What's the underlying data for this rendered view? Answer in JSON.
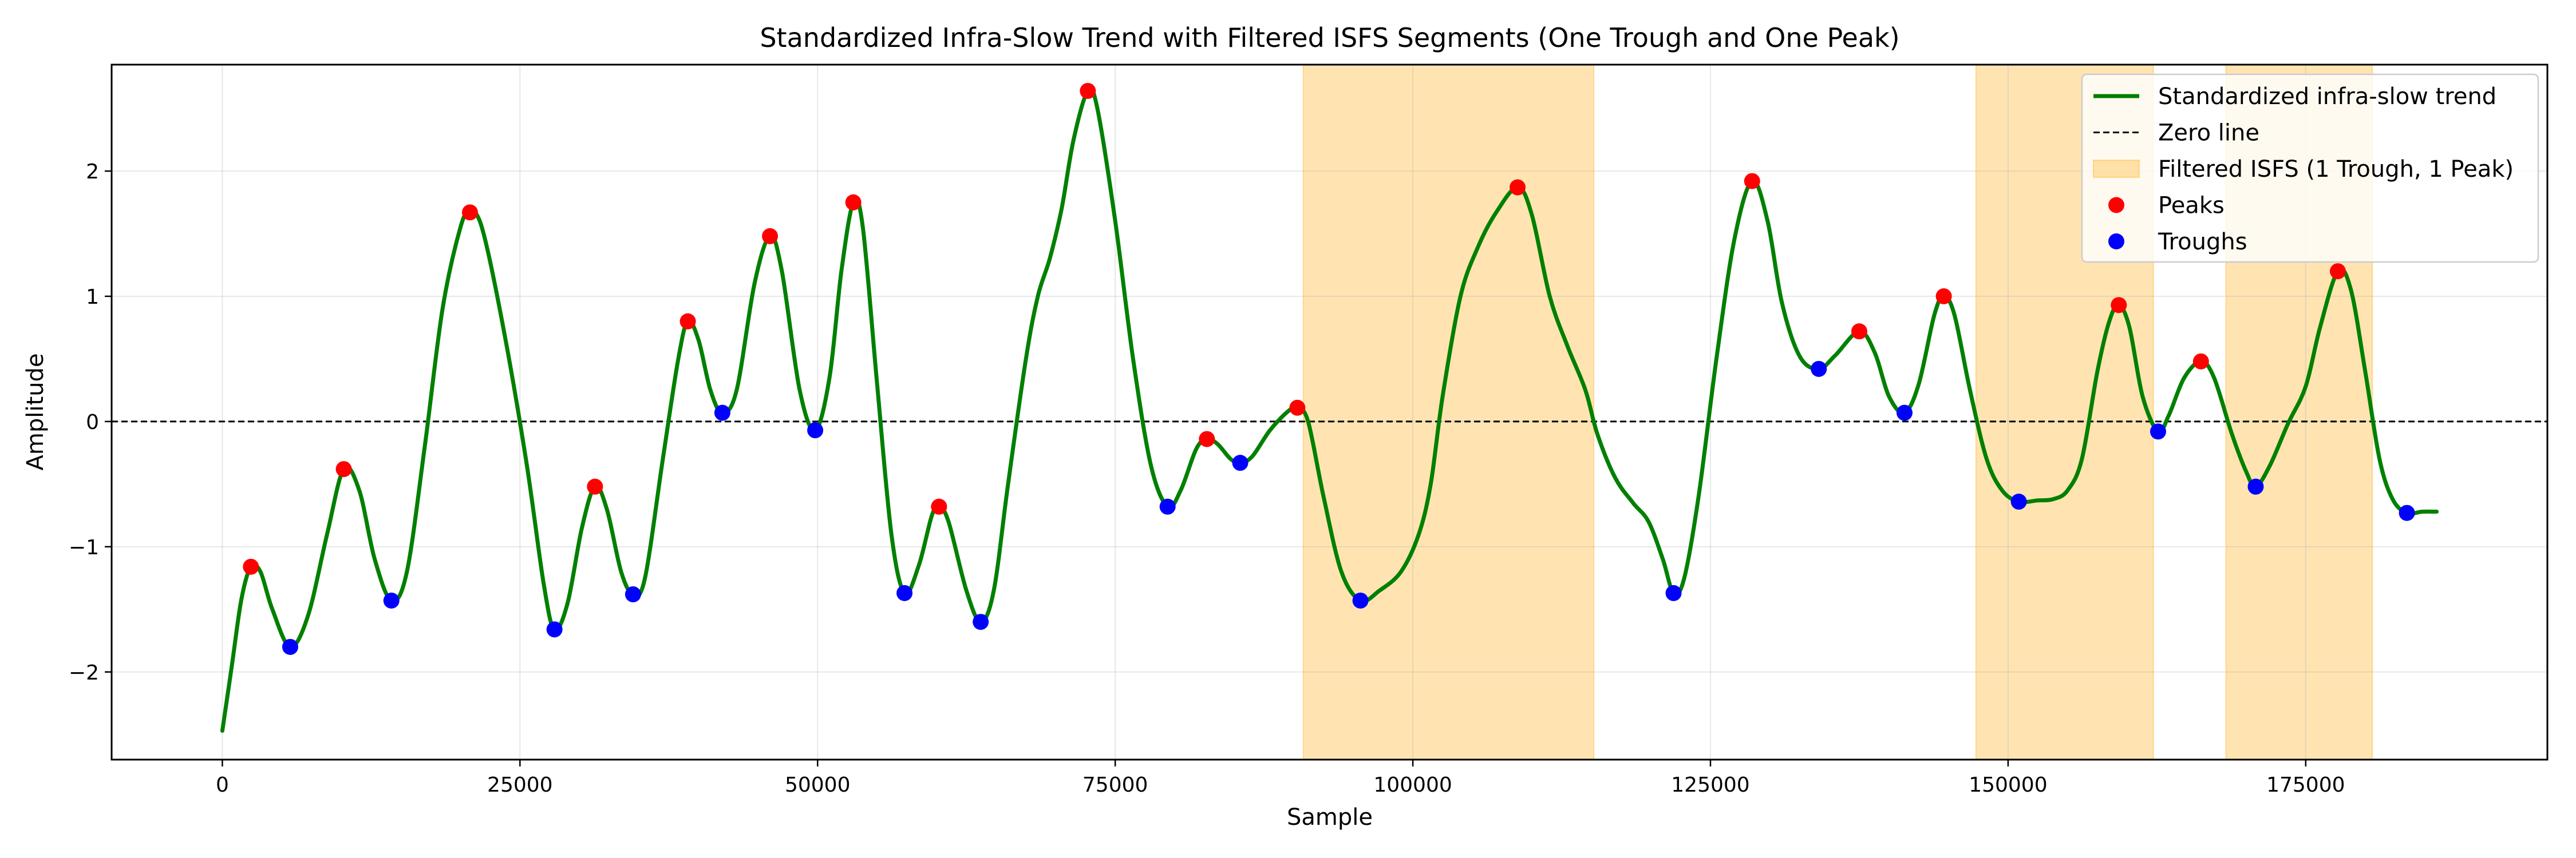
{
  "chart_data": {
    "type": "line",
    "title": "Standardized Infra-Slow Trend with Filtered ISFS Segments (One Trough and One Peak)",
    "xlabel": "Sample",
    "ylabel": "Amplitude",
    "xlim": [
      -9300,
      195300
    ],
    "ylim": [
      -2.7,
      2.85
    ],
    "xticks": [
      0,
      25000,
      50000,
      75000,
      100000,
      125000,
      150000,
      175000
    ],
    "xtick_labels": [
      "0",
      "25000",
      "50000",
      "75000",
      "100000",
      "125000",
      "150000",
      "175000"
    ],
    "yticks": [
      -2,
      -1,
      0,
      1,
      2
    ],
    "ytick_labels": [
      "−2",
      "−1",
      "0",
      "1",
      "2"
    ],
    "grid": true,
    "legend_position": "top-right",
    "colors": {
      "trend": "#008000",
      "zero": "#000000",
      "isfs": "#ffa500",
      "peaks": "#ff0000",
      "troughs": "#0000ff"
    },
    "series": [
      {
        "name": "Standardized infra-slow trend",
        "type": "line",
        "points": [
          [
            0,
            -2.47
          ],
          [
            800,
            -1.95
          ],
          [
            1600,
            -1.42
          ],
          [
            2400,
            -1.16
          ],
          [
            3200,
            -1.2
          ],
          [
            4200,
            -1.5
          ],
          [
            5700,
            -1.8
          ],
          [
            7200,
            -1.55
          ],
          [
            8800,
            -0.9
          ],
          [
            10200,
            -0.38
          ],
          [
            11500,
            -0.55
          ],
          [
            12800,
            -1.1
          ],
          [
            14200,
            -1.43
          ],
          [
            15500,
            -1.2
          ],
          [
            17000,
            -0.2
          ],
          [
            18500,
            0.9
          ],
          [
            20000,
            1.55
          ],
          [
            20800,
            1.67
          ],
          [
            21800,
            1.55
          ],
          [
            23500,
            0.8
          ],
          [
            25500,
            -0.3
          ],
          [
            27000,
            -1.3
          ],
          [
            27900,
            -1.66
          ],
          [
            29000,
            -1.45
          ],
          [
            30200,
            -0.85
          ],
          [
            31300,
            -0.52
          ],
          [
            32300,
            -0.7
          ],
          [
            33500,
            -1.2
          ],
          [
            34500,
            -1.38
          ],
          [
            35500,
            -1.25
          ],
          [
            37000,
            -0.3
          ],
          [
            38300,
            0.5
          ],
          [
            39100,
            0.8
          ],
          [
            40000,
            0.65
          ],
          [
            41000,
            0.25
          ],
          [
            42000,
            0.07
          ],
          [
            43200,
            0.25
          ],
          [
            44700,
            1.1
          ],
          [
            46000,
            1.48
          ],
          [
            47000,
            1.2
          ],
          [
            48500,
            0.25
          ],
          [
            49800,
            -0.07
          ],
          [
            51000,
            0.35
          ],
          [
            52000,
            1.2
          ],
          [
            53000,
            1.75
          ],
          [
            53800,
            1.55
          ],
          [
            55000,
            0.3
          ],
          [
            56200,
            -0.9
          ],
          [
            57300,
            -1.37
          ],
          [
            58500,
            -1.15
          ],
          [
            59600,
            -0.75
          ],
          [
            60200,
            -0.68
          ],
          [
            61000,
            -0.8
          ],
          [
            62500,
            -1.35
          ],
          [
            63700,
            -1.6
          ],
          [
            64800,
            -1.35
          ],
          [
            66000,
            -0.5
          ],
          [
            67500,
            0.5
          ],
          [
            68500,
            1.0
          ],
          [
            69500,
            1.3
          ],
          [
            70500,
            1.7
          ],
          [
            71500,
            2.25
          ],
          [
            72700,
            2.64
          ],
          [
            73500,
            2.5
          ],
          [
            75000,
            1.6
          ],
          [
            76500,
            0.5
          ],
          [
            78000,
            -0.35
          ],
          [
            79400,
            -0.68
          ],
          [
            80500,
            -0.55
          ],
          [
            81800,
            -0.22
          ],
          [
            82700,
            -0.14
          ],
          [
            83600,
            -0.18
          ],
          [
            84700,
            -0.3
          ],
          [
            85500,
            -0.33
          ],
          [
            86500,
            -0.28
          ],
          [
            88000,
            -0.07
          ],
          [
            89500,
            0.08
          ],
          [
            90300,
            0.11
          ],
          [
            91200,
            0.0
          ],
          [
            92500,
            -0.6
          ],
          [
            94000,
            -1.2
          ],
          [
            95600,
            -1.43
          ],
          [
            97200,
            -1.35
          ],
          [
            99000,
            -1.2
          ],
          [
            100500,
            -0.9
          ],
          [
            101500,
            -0.5
          ],
          [
            102500,
            0.2
          ],
          [
            104000,
            1.0
          ],
          [
            105500,
            1.4
          ],
          [
            107000,
            1.67
          ],
          [
            108800,
            1.87
          ],
          [
            110000,
            1.65
          ],
          [
            111500,
            1.0
          ],
          [
            113000,
            0.6
          ],
          [
            114500,
            0.25
          ],
          [
            115500,
            -0.1
          ],
          [
            117000,
            -0.45
          ],
          [
            118500,
            -0.65
          ],
          [
            119800,
            -0.8
          ],
          [
            121000,
            -1.1
          ],
          [
            121900,
            -1.37
          ],
          [
            122800,
            -1.25
          ],
          [
            124000,
            -0.6
          ],
          [
            125500,
            0.5
          ],
          [
            127000,
            1.45
          ],
          [
            128500,
            1.92
          ],
          [
            129800,
            1.6
          ],
          [
            131000,
            0.95
          ],
          [
            132500,
            0.52
          ],
          [
            134100,
            0.42
          ],
          [
            135500,
            0.53
          ],
          [
            137500,
            0.72
          ],
          [
            138800,
            0.55
          ],
          [
            140000,
            0.2
          ],
          [
            141300,
            0.07
          ],
          [
            142500,
            0.3
          ],
          [
            143800,
            0.85
          ],
          [
            144600,
            1.0
          ],
          [
            145500,
            0.85
          ],
          [
            146800,
            0.25
          ],
          [
            148200,
            -0.3
          ],
          [
            149500,
            -0.55
          ],
          [
            150900,
            -0.64
          ],
          [
            152500,
            -0.63
          ],
          [
            153800,
            -0.62
          ],
          [
            155000,
            -0.55
          ],
          [
            156200,
            -0.3
          ],
          [
            157500,
            0.4
          ],
          [
            158500,
            0.8
          ],
          [
            159300,
            0.93
          ],
          [
            160200,
            0.75
          ],
          [
            161300,
            0.2
          ],
          [
            162600,
            -0.08
          ],
          [
            163500,
            0.05
          ],
          [
            164800,
            0.35
          ],
          [
            166200,
            0.48
          ],
          [
            167300,
            0.35
          ],
          [
            168800,
            -0.1
          ],
          [
            170000,
            -0.4
          ],
          [
            170800,
            -0.52
          ],
          [
            172000,
            -0.35
          ],
          [
            173500,
            -0.02
          ],
          [
            175000,
            0.28
          ],
          [
            176200,
            0.75
          ],
          [
            177700,
            1.2
          ],
          [
            178800,
            1.05
          ],
          [
            180000,
            0.4
          ],
          [
            181200,
            -0.3
          ],
          [
            182300,
            -0.62
          ],
          [
            183500,
            -0.73
          ],
          [
            184800,
            -0.72
          ],
          [
            186000,
            -0.72
          ]
        ]
      },
      {
        "name": "Zero line",
        "type": "hline",
        "y": 0
      },
      {
        "name": "Filtered ISFS (1 Trough, 1 Peak)",
        "type": "span",
        "ranges": [
          [
            90800,
            115200
          ],
          [
            147300,
            162200
          ],
          [
            168300,
            180600
          ]
        ]
      },
      {
        "name": "Peaks",
        "type": "scatter",
        "points": [
          [
            2400,
            -1.16
          ],
          [
            10200,
            -0.38
          ],
          [
            20800,
            1.67
          ],
          [
            31300,
            -0.52
          ],
          [
            39100,
            0.8
          ],
          [
            46000,
            1.48
          ],
          [
            53000,
            1.75
          ],
          [
            60200,
            -0.68
          ],
          [
            72700,
            2.64
          ],
          [
            82700,
            -0.14
          ],
          [
            90300,
            0.11
          ],
          [
            108800,
            1.87
          ],
          [
            128500,
            1.92
          ],
          [
            137500,
            0.72
          ],
          [
            144600,
            1.0
          ],
          [
            159300,
            0.93
          ],
          [
            166200,
            0.48
          ],
          [
            177700,
            1.2
          ]
        ]
      },
      {
        "name": "Troughs",
        "type": "scatter",
        "points": [
          [
            5700,
            -1.8
          ],
          [
            14200,
            -1.43
          ],
          [
            27900,
            -1.66
          ],
          [
            34500,
            -1.38
          ],
          [
            42000,
            0.07
          ],
          [
            49800,
            -0.07
          ],
          [
            57300,
            -1.37
          ],
          [
            63700,
            -1.6
          ],
          [
            79400,
            -0.68
          ],
          [
            85500,
            -0.33
          ],
          [
            95600,
            -1.43
          ],
          [
            121900,
            -1.37
          ],
          [
            134100,
            0.42
          ],
          [
            141300,
            0.07
          ],
          [
            150900,
            -0.64
          ],
          [
            162600,
            -0.08
          ],
          [
            170800,
            -0.52
          ],
          [
            183500,
            -0.73
          ]
        ]
      }
    ],
    "legend": [
      {
        "label": "Standardized infra-slow trend",
        "kind": "line",
        "color_key": "trend"
      },
      {
        "label": "Zero line",
        "kind": "dashed",
        "color_key": "zero"
      },
      {
        "label": "Filtered ISFS (1 Trough, 1 Peak)",
        "kind": "patch",
        "color_key": "isfs"
      },
      {
        "label": "Peaks",
        "kind": "dot",
        "color_key": "peaks"
      },
      {
        "label": "Troughs",
        "kind": "dot",
        "color_key": "troughs"
      }
    ]
  }
}
